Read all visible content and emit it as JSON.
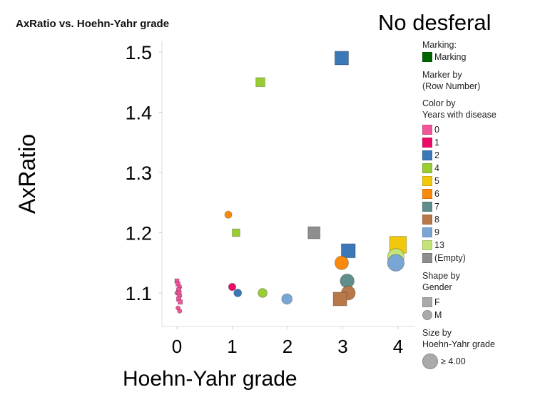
{
  "title": "AxRatio vs. Hoehn-Yahr grade",
  "subtitle": "No desferal",
  "chart_data": {
    "type": "scatter",
    "xlabel": "Hoehn-Yahr grade",
    "ylabel": "AxRatio",
    "xlim": [
      -0.3,
      4.25
    ],
    "ylim": [
      1.044,
      1.52
    ],
    "xticks": [
      "0",
      "1",
      "2",
      "3",
      "4"
    ],
    "yticks": [
      "1.1",
      "1.2",
      "1.3",
      "1.4",
      "1.5"
    ],
    "points": [
      {
        "x": 0.0,
        "y": 1.12,
        "color": "0",
        "shape": "F"
      },
      {
        "x": 0.02,
        "y": 1.115,
        "color": "0",
        "shape": "F"
      },
      {
        "x": 0.05,
        "y": 1.11,
        "color": "0",
        "shape": "M"
      },
      {
        "x": 0.03,
        "y": 1.105,
        "color": "0",
        "shape": "F"
      },
      {
        "x": 0.0,
        "y": 1.1,
        "color": "0",
        "shape": "M"
      },
      {
        "x": 0.04,
        "y": 1.1,
        "color": "0",
        "shape": "F"
      },
      {
        "x": 0.05,
        "y": 1.095,
        "color": "0",
        "shape": "M"
      },
      {
        "x": 0.03,
        "y": 1.09,
        "color": "0",
        "shape": "F"
      },
      {
        "x": 0.06,
        "y": 1.085,
        "color": "0",
        "shape": "F"
      },
      {
        "x": 0.02,
        "y": 1.075,
        "color": "0",
        "shape": "M"
      },
      {
        "x": 0.05,
        "y": 1.07,
        "color": "0",
        "shape": "M"
      },
      {
        "x": 0.93,
        "y": 1.23,
        "color": "6",
        "shape": "M"
      },
      {
        "x": 1.07,
        "y": 1.2,
        "color": "4",
        "shape": "F"
      },
      {
        "x": 1.0,
        "y": 1.11,
        "color": "1",
        "shape": "M"
      },
      {
        "x": 1.1,
        "y": 1.1,
        "color": "2",
        "shape": "M"
      },
      {
        "x": 1.51,
        "y": 1.45,
        "color": "4",
        "shape": "F"
      },
      {
        "x": 1.55,
        "y": 1.1,
        "color": "4",
        "shape": "M"
      },
      {
        "x": 1.99,
        "y": 1.09,
        "color": "9",
        "shape": "M"
      },
      {
        "x": 2.48,
        "y": 1.2,
        "color": "(Empty)",
        "shape": "F"
      },
      {
        "x": 2.98,
        "y": 1.49,
        "color": "2",
        "shape": "F"
      },
      {
        "x": 3.1,
        "y": 1.17,
        "color": "2",
        "shape": "F"
      },
      {
        "x": 2.98,
        "y": 1.15,
        "color": "6",
        "shape": "M"
      },
      {
        "x": 3.08,
        "y": 1.12,
        "color": "7",
        "shape": "M"
      },
      {
        "x": 3.1,
        "y": 1.1,
        "color": "8",
        "shape": "M"
      },
      {
        "x": 2.95,
        "y": 1.09,
        "color": "8",
        "shape": "F"
      },
      {
        "x": 4.0,
        "y": 1.18,
        "color": "5",
        "shape": "F"
      },
      {
        "x": 3.96,
        "y": 1.16,
        "color": "13",
        "shape": "M"
      },
      {
        "x": 3.96,
        "y": 1.15,
        "color": "9",
        "shape": "M"
      }
    ]
  },
  "legend": {
    "marking_title": "Marking:",
    "marking_label": "Marking",
    "marking_color": "#006400",
    "marker_title": "Marker by",
    "marker_sub": "(Row Number)",
    "color_title": "Color by",
    "color_sub": "Years with disease",
    "colors": [
      {
        "label": "0",
        "color": "#f0569a"
      },
      {
        "label": "1",
        "color": "#ee0a6b"
      },
      {
        "label": "2",
        "color": "#3a78b8"
      },
      {
        "label": "4",
        "color": "#9acd32"
      },
      {
        "label": "5",
        "color": "#f2c80f"
      },
      {
        "label": "6",
        "color": "#f98a0e"
      },
      {
        "label": "7",
        "color": "#5f8e8c"
      },
      {
        "label": "8",
        "color": "#b8784a"
      },
      {
        "label": "9",
        "color": "#7aa6d6"
      },
      {
        "label": "13",
        "color": "#c4e47a"
      },
      {
        "label": "(Empty)",
        "color": "#8e8e8e"
      }
    ],
    "shape_title": "Shape by",
    "shape_sub": "Gender",
    "shape_f": "F",
    "shape_m": "M",
    "size_title": "Size by",
    "size_sub": "Hoehn-Yahr grade",
    "size_label": "≥ 4.00"
  }
}
